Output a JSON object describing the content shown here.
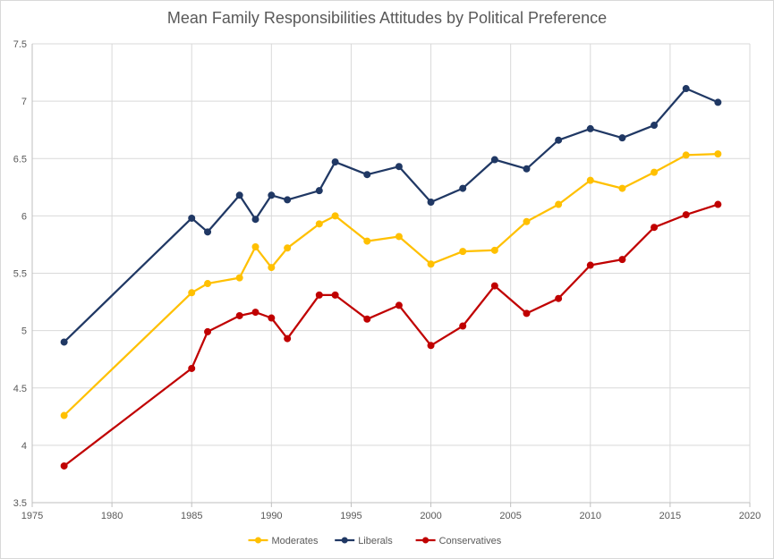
{
  "chart_data": {
    "type": "line",
    "title": "Mean Family Responsibilities Attitudes by Political Preference",
    "xlabel": "",
    "ylabel": "",
    "xlim": [
      1975,
      2020
    ],
    "ylim": [
      3.5,
      7.5
    ],
    "xticks": [
      1975,
      1980,
      1985,
      1990,
      1995,
      2000,
      2005,
      2010,
      2015,
      2020
    ],
    "yticks": [
      3.5,
      4,
      4.5,
      5,
      5.5,
      6,
      6.5,
      7,
      7.5
    ],
    "ytick_labels": [
      "3.5",
      "4",
      "4.5",
      "5",
      "5.5",
      "6",
      "6.5",
      "7",
      "7.5"
    ],
    "grid": true,
    "legend_position": "bottom",
    "x": [
      1977,
      1985,
      1986,
      1988,
      1989,
      1990,
      1991,
      1993,
      1994,
      1996,
      1998,
      2000,
      2002,
      2004,
      2006,
      2008,
      2010,
      2012,
      2014,
      2016,
      2018
    ],
    "series": [
      {
        "name": "Moderates",
        "color": "#ffc000",
        "values": [
          4.26,
          5.33,
          5.41,
          5.46,
          5.73,
          5.55,
          5.72,
          5.93,
          6.0,
          5.78,
          5.82,
          5.58,
          5.69,
          5.7,
          5.95,
          6.1,
          6.31,
          6.24,
          6.38,
          6.53,
          6.54
        ]
      },
      {
        "name": "Liberals",
        "color": "#203864",
        "values": [
          4.9,
          5.98,
          5.86,
          6.18,
          5.97,
          6.18,
          6.14,
          6.22,
          6.47,
          6.36,
          6.43,
          6.12,
          6.24,
          6.49,
          6.41,
          6.66,
          6.76,
          6.68,
          6.79,
          7.11,
          6.99
        ]
      },
      {
        "name": "Conservatives",
        "color": "#c00000",
        "values": [
          3.82,
          4.67,
          4.99,
          5.13,
          5.16,
          5.11,
          4.93,
          5.31,
          5.31,
          5.1,
          5.22,
          4.87,
          5.04,
          5.39,
          5.15,
          5.28,
          5.57,
          5.62,
          5.9,
          6.01,
          6.1
        ]
      }
    ]
  }
}
